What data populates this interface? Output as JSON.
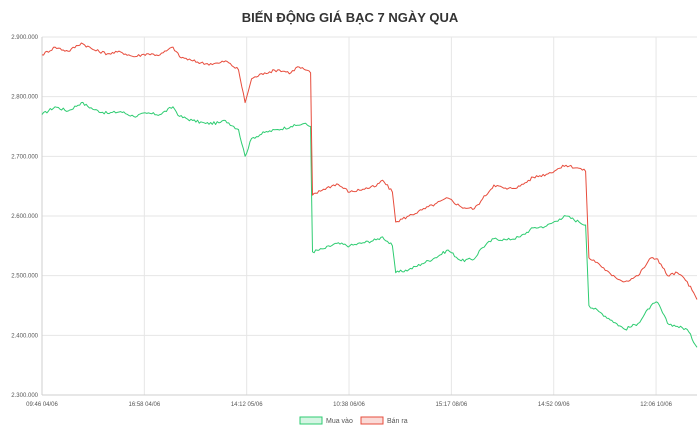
{
  "chart_data": {
    "type": "line",
    "title": "BIẾN ĐỘNG GIÁ BẠC 7 NGÀY QUA",
    "xlabel": "",
    "ylabel": "",
    "ylim": [
      2300000,
      2900000
    ],
    "y_ticks": [
      {
        "value": 2900000,
        "label": "2.900.000"
      },
      {
        "value": 2800000,
        "label": "2.800.000"
      },
      {
        "value": 2700000,
        "label": "2.700.000"
      },
      {
        "value": 2600000,
        "label": "2.600.000"
      },
      {
        "value": 2500000,
        "label": "2.500.000"
      },
      {
        "value": 2400000,
        "label": "2.400.000"
      },
      {
        "value": 2300000,
        "label": "2.300.000"
      }
    ],
    "x_ticks": [
      "09:46 04/06",
      "16:58 04/06",
      "14:12 05/06",
      "10:38 06/06",
      "15:17 08/06",
      "14:52 09/06",
      "12:06 10/06"
    ],
    "grid": true,
    "legend": "bottom",
    "series": [
      {
        "name": "Mua vào",
        "color": "#2ecc71",
        "values": [
          [
            0.0,
            2770000
          ],
          [
            0.02,
            2783000
          ],
          [
            0.04,
            2776000
          ],
          [
            0.06,
            2790000
          ],
          [
            0.08,
            2778000
          ],
          [
            0.1,
            2772000
          ],
          [
            0.12,
            2775000
          ],
          [
            0.14,
            2767000
          ],
          [
            0.16,
            2772000
          ],
          [
            0.18,
            2770000
          ],
          [
            0.2,
            2783000
          ],
          [
            0.21,
            2767000
          ],
          [
            0.23,
            2760000
          ],
          [
            0.25,
            2755000
          ],
          [
            0.27,
            2756000
          ],
          [
            0.28,
            2760000
          ],
          [
            0.3,
            2745000
          ],
          [
            0.31,
            2700000
          ],
          [
            0.32,
            2730000
          ],
          [
            0.34,
            2740000
          ],
          [
            0.36,
            2745000
          ],
          [
            0.38,
            2750000
          ],
          [
            0.39,
            2752000
          ],
          [
            0.4,
            2755000
          ],
          [
            0.41,
            2750000
          ],
          [
            0.413,
            2540000
          ],
          [
            0.43,
            2545000
          ],
          [
            0.45,
            2554000
          ],
          [
            0.47,
            2550000
          ],
          [
            0.49,
            2555000
          ],
          [
            0.51,
            2560000
          ],
          [
            0.52,
            2565000
          ],
          [
            0.535,
            2550000
          ],
          [
            0.54,
            2505000
          ],
          [
            0.56,
            2510000
          ],
          [
            0.58,
            2520000
          ],
          [
            0.6,
            2530000
          ],
          [
            0.62,
            2543000
          ],
          [
            0.64,
            2525000
          ],
          [
            0.66,
            2528000
          ],
          [
            0.67,
            2545000
          ],
          [
            0.69,
            2562000
          ],
          [
            0.71,
            2560000
          ],
          [
            0.73,
            2565000
          ],
          [
            0.75,
            2580000
          ],
          [
            0.77,
            2583000
          ],
          [
            0.79,
            2595000
          ],
          [
            0.8,
            2600000
          ],
          [
            0.82,
            2590000
          ],
          [
            0.83,
            2585000
          ],
          [
            0.835,
            2450000
          ],
          [
            0.85,
            2440000
          ],
          [
            0.87,
            2425000
          ],
          [
            0.89,
            2410000
          ],
          [
            0.91,
            2420000
          ],
          [
            0.93,
            2450000
          ],
          [
            0.94,
            2455000
          ],
          [
            0.955,
            2420000
          ],
          [
            0.97,
            2415000
          ],
          [
            0.985,
            2410000
          ],
          [
            1.0,
            2380000
          ]
        ]
      },
      {
        "name": "Bán ra",
        "color": "#e74c3c",
        "values": [
          [
            0.0,
            2870000
          ],
          [
            0.02,
            2883000
          ],
          [
            0.04,
            2876000
          ],
          [
            0.06,
            2890000
          ],
          [
            0.08,
            2878000
          ],
          [
            0.1,
            2872000
          ],
          [
            0.12,
            2875000
          ],
          [
            0.14,
            2867000
          ],
          [
            0.16,
            2872000
          ],
          [
            0.18,
            2870000
          ],
          [
            0.2,
            2883000
          ],
          [
            0.21,
            2867000
          ],
          [
            0.23,
            2860000
          ],
          [
            0.25,
            2855000
          ],
          [
            0.27,
            2856000
          ],
          [
            0.28,
            2860000
          ],
          [
            0.3,
            2845000
          ],
          [
            0.31,
            2790000
          ],
          [
            0.32,
            2830000
          ],
          [
            0.34,
            2840000
          ],
          [
            0.36,
            2845000
          ],
          [
            0.38,
            2840000
          ],
          [
            0.39,
            2850000
          ],
          [
            0.4,
            2846000
          ],
          [
            0.41,
            2840000
          ],
          [
            0.413,
            2635000
          ],
          [
            0.43,
            2645000
          ],
          [
            0.45,
            2654000
          ],
          [
            0.47,
            2640000
          ],
          [
            0.49,
            2645000
          ],
          [
            0.51,
            2650000
          ],
          [
            0.52,
            2660000
          ],
          [
            0.535,
            2640000
          ],
          [
            0.54,
            2590000
          ],
          [
            0.56,
            2600000
          ],
          [
            0.58,
            2610000
          ],
          [
            0.6,
            2620000
          ],
          [
            0.62,
            2630000
          ],
          [
            0.64,
            2615000
          ],
          [
            0.66,
            2612000
          ],
          [
            0.67,
            2625000
          ],
          [
            0.69,
            2652000
          ],
          [
            0.71,
            2645000
          ],
          [
            0.73,
            2650000
          ],
          [
            0.75,
            2665000
          ],
          [
            0.77,
            2670000
          ],
          [
            0.79,
            2680000
          ],
          [
            0.8,
            2685000
          ],
          [
            0.82,
            2680000
          ],
          [
            0.83,
            2675000
          ],
          [
            0.835,
            2530000
          ],
          [
            0.85,
            2520000
          ],
          [
            0.87,
            2500000
          ],
          [
            0.89,
            2490000
          ],
          [
            0.91,
            2500000
          ],
          [
            0.93,
            2530000
          ],
          [
            0.94,
            2528000
          ],
          [
            0.955,
            2500000
          ],
          [
            0.97,
            2505000
          ],
          [
            0.985,
            2490000
          ],
          [
            1.0,
            2460000
          ]
        ]
      }
    ]
  }
}
